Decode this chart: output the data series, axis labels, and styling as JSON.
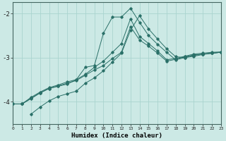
{
  "xlabel": "Humidex (Indice chaleur)",
  "bg_color": "#cce9e5",
  "grid_color": "#aad4cf",
  "line_color": "#2a7068",
  "x_min": 0,
  "x_max": 23,
  "y_min": -4.5,
  "y_max": -1.75,
  "yticks": [
    -4,
    -3,
    -2
  ],
  "lines": [
    {
      "x": [
        0,
        1,
        2,
        3,
        4,
        5,
        6,
        7,
        8,
        9,
        10,
        11,
        12,
        13,
        14,
        15,
        16,
        17,
        18,
        19,
        20,
        21,
        22,
        23
      ],
      "y": [
        -4.05,
        -4.05,
        -3.9,
        -3.78,
        -3.68,
        -3.62,
        -3.55,
        -3.5,
        -3.38,
        -3.22,
        -3.08,
        -2.88,
        -2.68,
        -2.12,
        -2.52,
        -2.68,
        -2.85,
        -3.05,
        -3.02,
        -2.97,
        -2.92,
        -2.9,
        -2.88,
        -2.87
      ]
    },
    {
      "x": [
        0,
        1,
        2,
        3,
        4,
        5,
        6,
        7,
        8,
        9,
        10,
        11,
        12,
        13,
        14,
        15,
        16,
        17,
        18,
        19,
        20,
        21,
        22,
        23
      ],
      "y": [
        -4.05,
        -4.05,
        -3.92,
        -3.8,
        -3.7,
        -3.64,
        -3.58,
        -3.52,
        -3.4,
        -3.28,
        -3.18,
        -3.02,
        -2.88,
        -2.3,
        -2.6,
        -2.74,
        -2.9,
        -3.08,
        -3.04,
        -2.98,
        -2.94,
        -2.92,
        -2.9,
        -2.88
      ]
    },
    {
      "x": [
        1,
        2,
        3,
        4,
        5,
        6,
        7,
        8,
        9,
        10,
        11,
        12,
        13,
        14,
        15,
        16,
        17,
        18,
        19,
        20,
        21,
        22,
        23
      ],
      "y": [
        -4.05,
        -3.93,
        -3.8,
        -3.7,
        -3.65,
        -3.6,
        -3.5,
        -3.22,
        -3.18,
        -2.45,
        -2.08,
        -2.08,
        -1.88,
        -2.2,
        -2.5,
        -2.7,
        -2.88,
        -3.05,
        -3.0,
        -2.95,
        -2.92,
        -2.9,
        -2.88
      ]
    },
    {
      "x": [
        2,
        3,
        4,
        5,
        6,
        7,
        8,
        9,
        10,
        11,
        12,
        13,
        14,
        15,
        16,
        17,
        18,
        19,
        20,
        21,
        22,
        23
      ],
      "y": [
        -4.28,
        -4.12,
        -3.98,
        -3.88,
        -3.82,
        -3.76,
        -3.58,
        -3.46,
        -3.3,
        -3.1,
        -2.9,
        -2.38,
        -2.05,
        -2.35,
        -2.58,
        -2.8,
        -2.98,
        -3.0,
        -2.97,
        -2.93,
        -2.9,
        -2.88
      ]
    }
  ]
}
